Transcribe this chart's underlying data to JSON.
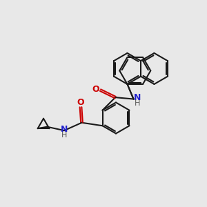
{
  "background_color": "#e8e8e8",
  "bond_color": "#1a1a1a",
  "oxygen_color": "#cc0000",
  "nitrogen_color": "#2222cc",
  "lw": 1.5,
  "dbo": 0.045,
  "figsize": [
    3.0,
    3.0
  ],
  "dpi": 100,
  "xlim": [
    0,
    10
  ],
  "ylim": [
    0,
    10
  ]
}
